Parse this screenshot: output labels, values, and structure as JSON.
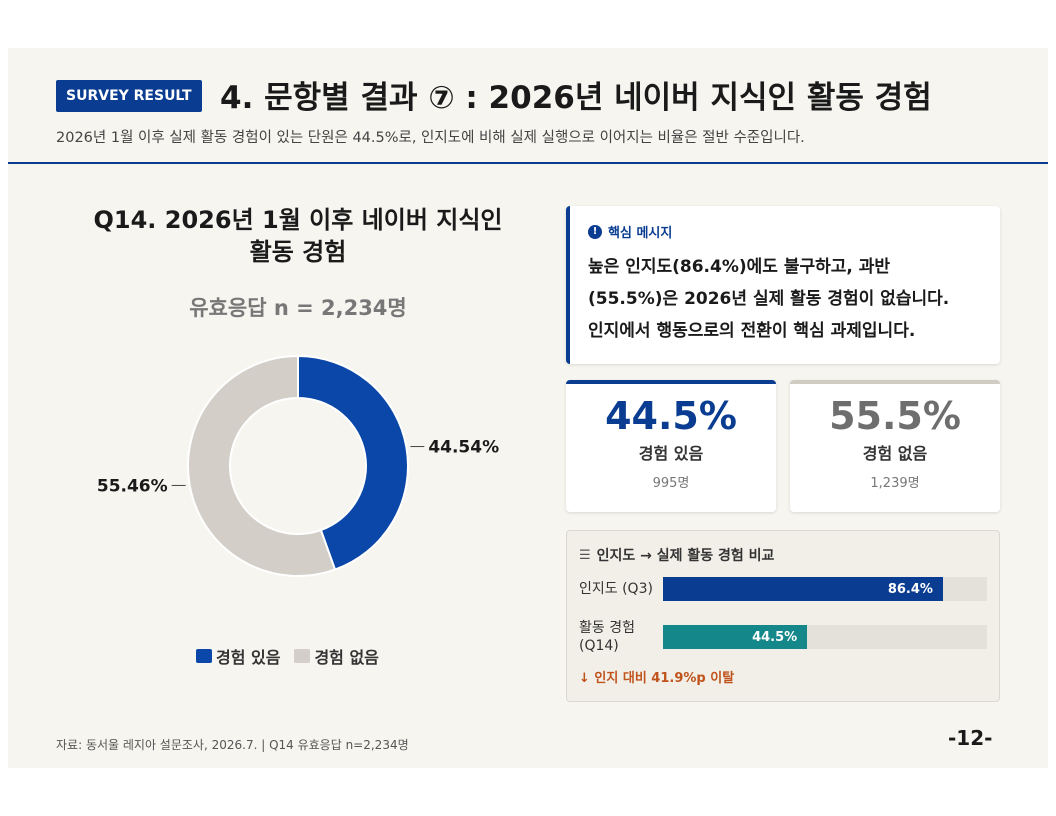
{
  "header": {
    "badge": "SURVEY RESULT",
    "title": "4. 문항별 결과 ⑦ : 2026년 네이버 지식인 활동 경험",
    "subtitle": "2026년 1월 이후 실제 활동 경험이 있는 단원은 44.5%로, 인지도에 비해 실제 실행으로 이어지는 비율은 절반 수준입니다."
  },
  "question": {
    "title_line1": "Q14. 2026년 1월 이후 네이버 지식인",
    "title_line2": "활동 경험",
    "n_label": "유효응답 n = 2,234명"
  },
  "chart_data": {
    "type": "pie",
    "categories": [
      "경험 있음",
      "경험 없음"
    ],
    "values": [
      44.54,
      55.46
    ],
    "value_labels": [
      "44.54%",
      "55.46%"
    ],
    "colors": [
      "#0a47a8",
      "#d3cfc8"
    ],
    "legend_position": "bottom"
  },
  "key_message": {
    "heading": "핵심 메시지",
    "icon": "exclamation-circle-icon",
    "line1": "높은 인지도(86.4%)에도 불구하고, 과반",
    "line2": "(55.5%)은 2026년 실제 활동 경험이 없습니다.",
    "line3": "인지에서 행동으로의 전환이 핵심 과제입니다."
  },
  "stats": [
    {
      "value": "44.5%",
      "label": "경험 있음",
      "count": "995명"
    },
    {
      "value": "55.5%",
      "label": "경험 없음",
      "count": "1,239명"
    }
  ],
  "comparison": {
    "heading": "인지도 → 실제 활동 경험 비교",
    "icon": "list-icon",
    "bars": [
      {
        "label": "인지도 (Q3)",
        "value": 86.4,
        "value_label": "86.4%",
        "color": "#0a3d91"
      },
      {
        "label": "활동 경험 (Q14)",
        "value": 44.5,
        "value_label": "44.5%",
        "color": "#14878a"
      }
    ],
    "gap_text": "↓ 인지 대비 41.9%p 이탈"
  },
  "footer": {
    "source": "자료: 동서울 레지아 설문조사, 2026.7.  |  Q14 유효응답 n=2,234명",
    "page": "-12-"
  }
}
